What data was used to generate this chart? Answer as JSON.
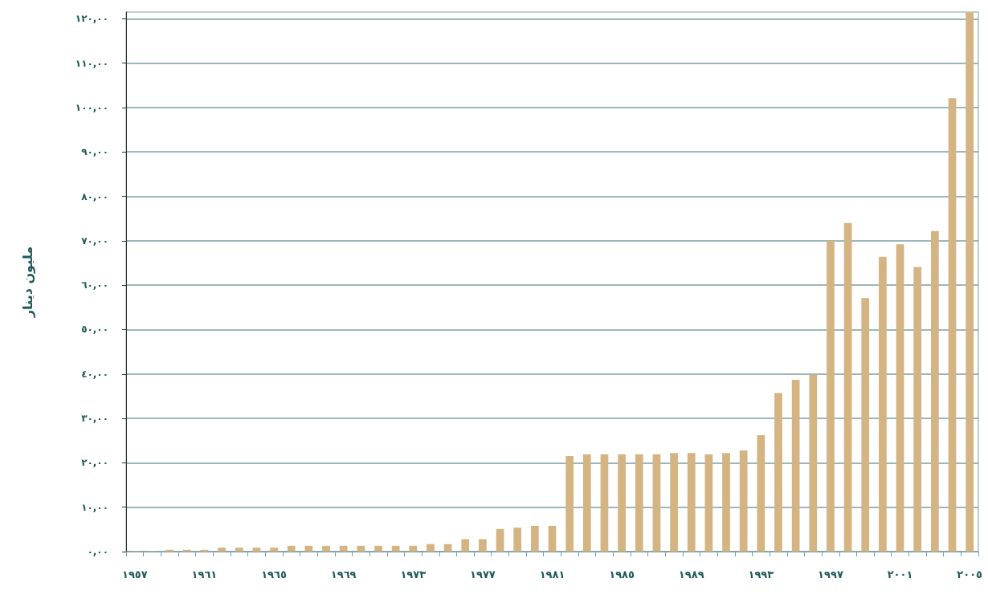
{
  "chart_data": {
    "type": "bar",
    "ylabel": "مليون دينار",
    "categories": [
      "١٩٥٧",
      null,
      null,
      null,
      "١٩٦١",
      null,
      null,
      null,
      "١٩٦٥",
      null,
      null,
      null,
      "١٩٦٩",
      null,
      null,
      null,
      "١٩٧٣",
      null,
      null,
      null,
      "١٩٧٧",
      null,
      null,
      null,
      "١٩٨١",
      null,
      null,
      null,
      "١٩٨٥",
      null,
      null,
      null,
      "١٩٨٩",
      null,
      null,
      null,
      "١٩٩٣",
      null,
      null,
      null,
      "١٩٩٧",
      null,
      null,
      null,
      "٢٠٠١",
      null,
      null,
      null,
      "٢٠٠٥"
    ],
    "values": [
      0.1,
      0.1,
      0.4,
      0.4,
      0.4,
      0.9,
      0.9,
      0.9,
      0.9,
      1.3,
      1.3,
      1.3,
      1.3,
      1.3,
      1.3,
      1.3,
      1.3,
      1.7,
      1.7,
      2.8,
      2.8,
      5.1,
      5.4,
      5.8,
      5.8,
      21.5,
      21.9,
      21.9,
      21.9,
      21.9,
      21.9,
      22.2,
      22.2,
      21.9,
      22.2,
      22.8,
      26.2,
      35.7,
      38.7,
      39.8,
      70,
      74,
      57.1,
      66.4,
      69.2,
      64.1,
      72.2,
      102.1,
      121.4
    ],
    "color": "#d4b483",
    "ylim": [
      0,
      121.5
    ],
    "yticks": [
      {
        "value": 0,
        "label": "٠,٠٠"
      },
      {
        "value": 10,
        "label": "١٠,٠٠"
      },
      {
        "value": 20,
        "label": "٢٠,٠٠"
      },
      {
        "value": 30,
        "label": "٣٠,٠٠"
      },
      {
        "value": 40,
        "label": "٤٠,٠٠"
      },
      {
        "value": 50,
        "label": "٥٠,٠٠"
      },
      {
        "value": 60,
        "label": "٦٠,٠٠"
      },
      {
        "value": 70,
        "label": "٧٠,٠٠"
      },
      {
        "value": 80,
        "label": "٨٠,٠٠"
      },
      {
        "value": 90,
        "label": "٩٠,٠٠"
      },
      {
        "value": 100,
        "label": "١٠٠,٠٠"
      },
      {
        "value": 110,
        "label": "١١٠,٠٠"
      },
      {
        "value": 120,
        "label": "١٢٠,٠٠"
      }
    ],
    "grid": "y"
  }
}
